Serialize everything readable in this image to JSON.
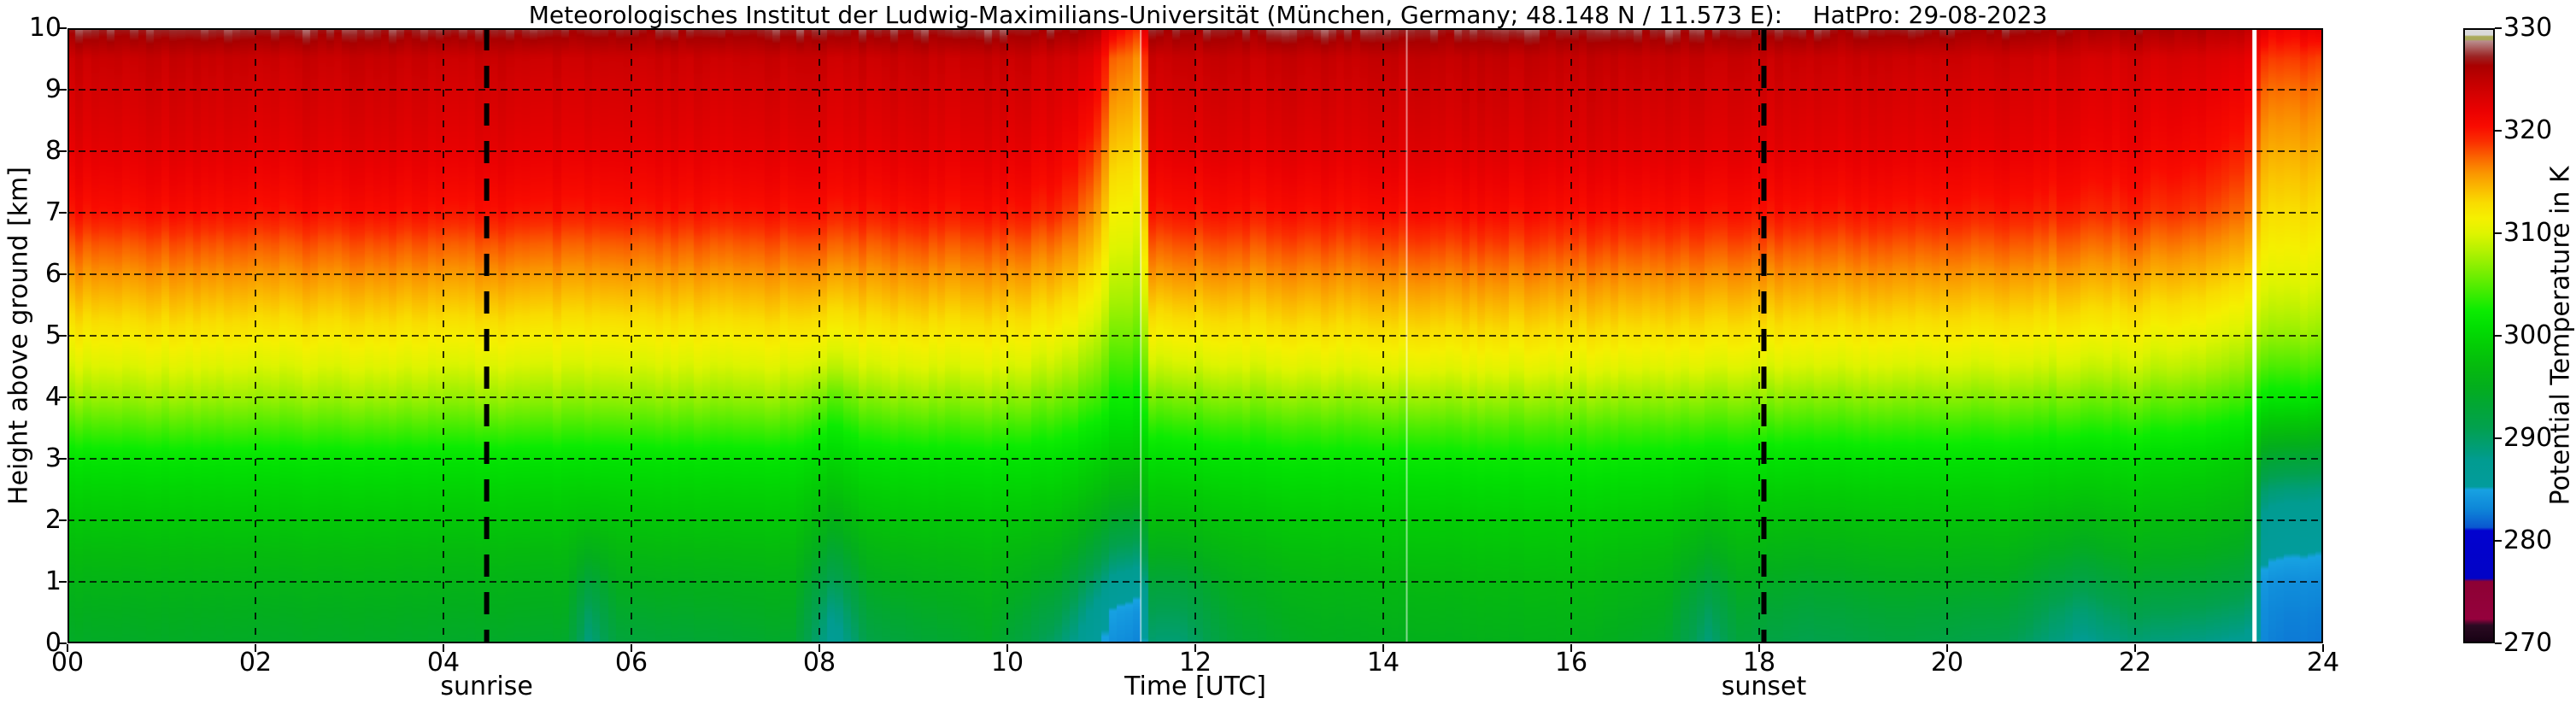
{
  "figure": {
    "title": "Meteorologisches Institut der Ludwig-Maximilians-Universität (München, Germany; 48.148 N / 11.573 E):    HatPro: 29-08-2023",
    "background_color": "#ffffff",
    "grid_color": "#000000",
    "frame_color": "#000000",
    "missing_data_line_color": "#ffffff"
  },
  "axes": {
    "x": {
      "label": "Time [UTC]",
      "range": [
        0,
        24
      ],
      "tick_values": [
        0,
        2,
        4,
        6,
        8,
        10,
        12,
        14,
        16,
        18,
        20,
        22,
        24
      ],
      "tick_labels": [
        "00",
        "02",
        "04",
        "06",
        "08",
        "10",
        "12",
        "14",
        "16",
        "18",
        "20",
        "22",
        "24"
      ]
    },
    "y": {
      "label": "Height above ground [km]",
      "range": [
        0,
        10
      ],
      "tick_values": [
        0,
        1,
        2,
        3,
        4,
        5,
        6,
        7,
        8,
        9,
        10
      ],
      "tick_labels": [
        "0",
        "1",
        "2",
        "3",
        "4",
        "5",
        "6",
        "7",
        "8",
        "9",
        "10"
      ]
    },
    "annotations": {
      "sunrise": {
        "label": "sunrise",
        "time_utc": 4.46
      },
      "sunset": {
        "label": "sunset",
        "time_utc": 18.05
      }
    }
  },
  "colorbar": {
    "label": "Potential Temperature in K",
    "range": [
      270,
      330
    ],
    "tick_values": [
      270,
      280,
      290,
      300,
      310,
      320,
      330
    ],
    "tick_labels": [
      "270",
      "280",
      "290",
      "300",
      "310",
      "320",
      "330"
    ]
  },
  "chart_data": {
    "type": "heatmap",
    "title": "Meteorologisches Institut der Ludwig-Maximilians-Universität (München, Germany; 48.148 N / 11.573 E):    HatPro: 29-08-2023",
    "xlabel": "Time [UTC]",
    "ylabel": "Height above ground [km]",
    "value_name": "Potential Temperature in K",
    "x_range_utc_hours": [
      0,
      24
    ],
    "y_range_km": [
      0,
      10
    ],
    "value_range_K": [
      270,
      330
    ],
    "grid": "dashed, 2 h vertical / 1 km horizontal",
    "legend_position": "right colorbar",
    "sunrise_utc": 4.46,
    "sunset_utc": 18.05,
    "missing_data_line_utc": 23.27,
    "seam_lines_utc": [
      11.42,
      14.25
    ],
    "colormap_stops": [
      [
        270.0,
        "#170214"
      ],
      [
        271.6,
        "#2b0a22"
      ],
      [
        271.9,
        "#5c0630"
      ],
      [
        272.2,
        "#95013d"
      ],
      [
        275.9,
        "#8d0134"
      ],
      [
        276.2,
        "#0203c6"
      ],
      [
        280.9,
        "#0202cf"
      ],
      [
        281.2,
        "#0a57d0"
      ],
      [
        283.0,
        "#0e86d8"
      ],
      [
        284.9,
        "#17a2e2"
      ],
      [
        285.2,
        "#029c9c"
      ],
      [
        287.9,
        "#019c90"
      ],
      [
        288.3,
        "#019c85"
      ],
      [
        291.0,
        "#02a14e"
      ],
      [
        293.0,
        "#02a636"
      ],
      [
        295.0,
        "#03ae1d"
      ],
      [
        297.0,
        "#05ba0e"
      ],
      [
        299.0,
        "#03cc05"
      ],
      [
        301.0,
        "#02e002"
      ],
      [
        302.5,
        "#0cec01"
      ],
      [
        304.0,
        "#39ec01"
      ],
      [
        306.0,
        "#73ee01"
      ],
      [
        308.0,
        "#abf101"
      ],
      [
        310.0,
        "#def400"
      ],
      [
        311.5,
        "#f5f000"
      ],
      [
        313.0,
        "#f9dc00"
      ],
      [
        314.5,
        "#fab900"
      ],
      [
        316.0,
        "#fa9400"
      ],
      [
        317.5,
        "#fa6400"
      ],
      [
        319.0,
        "#fa3000"
      ],
      [
        320.5,
        "#f90b00"
      ],
      [
        322.0,
        "#eb0101"
      ],
      [
        323.5,
        "#d70101"
      ],
      [
        325.0,
        "#c10000"
      ],
      [
        326.5,
        "#a90000"
      ],
      [
        327.4,
        "#9c2424"
      ],
      [
        328.4,
        "#ae6a6a"
      ],
      [
        328.9,
        "#b98c8c"
      ],
      [
        329.05,
        "#a9a959"
      ],
      [
        329.35,
        "#abab5c"
      ],
      [
        329.5,
        "#d9d9d9"
      ],
      [
        330.0,
        "#dcdcdc"
      ]
    ],
    "heights_km": [
      0,
      0.5,
      1,
      1.5,
      2,
      2.5,
      3,
      3.5,
      4,
      4.5,
      5,
      5.5,
      6,
      6.5,
      7,
      7.5,
      8,
      8.5,
      9,
      9.5,
      10
    ],
    "time_columns_utc": [
      0.0,
      3.0,
      5.3,
      5.55,
      5.85,
      7.7,
      8.15,
      8.55,
      9.8,
      10.55,
      10.9,
      11.15,
      11.38,
      11.44,
      11.5,
      11.85,
      12.4,
      13.2,
      14.5,
      16.0,
      17.0,
      17.45,
      17.8,
      18.5,
      19.5,
      20.6,
      21.4,
      22.0,
      22.7,
      23.2,
      23.38,
      23.6,
      24.0
    ],
    "theta_K": [
      [
        294.2,
        295.0,
        296.0,
        297.2,
        298.5,
        299.8,
        301.5,
        304.5,
        307.5,
        310.0,
        312.0,
        314.0,
        316.0,
        318.0,
        320.3,
        321.5,
        322.5,
        323.2,
        323.8,
        324.5,
        327.0
      ],
      [
        294.2,
        295.0,
        296.0,
        297.2,
        298.5,
        299.8,
        301.5,
        304.5,
        307.5,
        310.0,
        312.0,
        314.0,
        316.0,
        318.0,
        320.3,
        321.5,
        322.5,
        323.2,
        323.8,
        324.5,
        327.0
      ],
      [
        293.8,
        294.8,
        295.8,
        297.0,
        298.4,
        299.7,
        301.4,
        304.4,
        307.4,
        309.9,
        311.9,
        313.9,
        315.9,
        317.9,
        320.2,
        321.4,
        322.4,
        323.1,
        323.7,
        324.4,
        326.9
      ],
      [
        288.5,
        290.0,
        292.5,
        295.3,
        297.8,
        299.5,
        301.3,
        304.3,
        307.3,
        309.8,
        311.8,
        313.8,
        315.8,
        317.8,
        320.1,
        321.3,
        322.4,
        323.1,
        323.7,
        324.4,
        326.9
      ],
      [
        292.5,
        293.8,
        295.2,
        296.8,
        298.3,
        299.7,
        301.4,
        304.4,
        307.4,
        309.9,
        311.9,
        313.9,
        315.9,
        317.9,
        320.2,
        321.4,
        322.4,
        323.1,
        323.7,
        324.4,
        326.9
      ],
      [
        293.8,
        294.8,
        295.8,
        297.1,
        298.4,
        299.7,
        301.4,
        304.4,
        307.4,
        310.0,
        312.0,
        314.0,
        316.0,
        318.0,
        320.2,
        321.4,
        322.4,
        323.1,
        323.7,
        324.4,
        327.0
      ],
      [
        286.5,
        288.0,
        290.5,
        293.2,
        295.8,
        298.0,
        300.0,
        302.3,
        305.3,
        308.8,
        311.3,
        313.5,
        315.7,
        317.8,
        320.0,
        321.3,
        322.3,
        323.0,
        323.6,
        324.3,
        326.8
      ],
      [
        291.8,
        293.2,
        294.8,
        296.4,
        298.0,
        299.5,
        301.2,
        304.0,
        307.0,
        309.8,
        311.9,
        313.9,
        315.9,
        317.9,
        320.1,
        321.4,
        322.4,
        323.1,
        323.7,
        324.4,
        326.9
      ],
      [
        294.3,
        295.2,
        296.2,
        297.4,
        298.6,
        299.9,
        301.6,
        304.4,
        307.4,
        310.1,
        312.1,
        314.1,
        316.1,
        318.1,
        320.3,
        321.5,
        322.5,
        323.2,
        323.8,
        324.5,
        327.0
      ],
      [
        289.5,
        291.5,
        293.8,
        295.8,
        297.6,
        299.3,
        301.0,
        303.5,
        306.3,
        309.0,
        311.2,
        313.2,
        315.2,
        317.2,
        319.4,
        320.7,
        321.8,
        322.6,
        323.3,
        324.0,
        326.5
      ],
      [
        285.8,
        287.5,
        290.0,
        293.0,
        295.6,
        297.9,
        299.9,
        302.0,
        304.6,
        307.0,
        309.2,
        311.2,
        313.0,
        314.8,
        316.5,
        318.0,
        319.4,
        320.7,
        321.9,
        323.0,
        325.6
      ],
      [
        283.6,
        284.6,
        287.0,
        290.4,
        293.8,
        296.6,
        298.8,
        300.7,
        302.6,
        304.4,
        306.1,
        307.7,
        309.0,
        310.2,
        311.4,
        312.6,
        313.8,
        315.0,
        316.2,
        317.4,
        321.0
      ],
      [
        283.0,
        284.0,
        286.4,
        289.8,
        293.3,
        296.3,
        298.6,
        300.4,
        302.2,
        304.0,
        305.7,
        307.2,
        308.5,
        309.7,
        310.8,
        311.9,
        313.0,
        314.1,
        315.2,
        316.3,
        318.8
      ],
      [
        283.0,
        284.0,
        286.4,
        289.8,
        293.3,
        296.3,
        298.6,
        300.4,
        302.2,
        304.0,
        305.7,
        307.2,
        308.5,
        309.7,
        310.8,
        311.9,
        313.0,
        314.1,
        315.2,
        316.3,
        318.8
      ],
      [
        289.3,
        290.8,
        292.8,
        295.3,
        297.4,
        299.0,
        300.8,
        303.3,
        306.2,
        309.2,
        311.5,
        313.6,
        315.8,
        317.8,
        320.0,
        321.2,
        322.3,
        323.0,
        323.6,
        324.3,
        326.6
      ],
      [
        289.0,
        290.6,
        292.7,
        295.2,
        297.3,
        299.0,
        300.9,
        303.4,
        306.3,
        309.3,
        311.6,
        313.7,
        315.9,
        317.9,
        320.0,
        321.2,
        322.4,
        323.1,
        323.7,
        324.4,
        326.7
      ],
      [
        292.8,
        293.9,
        295.1,
        296.6,
        298.1,
        299.6,
        301.3,
        303.8,
        306.8,
        309.7,
        311.9,
        313.9,
        316.0,
        318.0,
        320.1,
        321.3,
        322.5,
        323.2,
        323.8,
        324.5,
        326.8
      ],
      [
        294.7,
        295.5,
        296.4,
        297.6,
        298.8,
        300.1,
        301.7,
        304.3,
        307.3,
        310.2,
        312.3,
        314.3,
        316.3,
        318.3,
        320.3,
        321.5,
        322.6,
        323.3,
        323.9,
        324.6,
        327.0
      ],
      [
        295.2,
        296.0,
        296.8,
        297.9,
        299.0,
        300.3,
        301.9,
        304.5,
        307.5,
        310.4,
        312.5,
        314.5,
        316.5,
        318.5,
        320.5,
        321.7,
        322.8,
        323.5,
        324.1,
        324.8,
        327.1
      ],
      [
        295.5,
        296.3,
        297.1,
        298.1,
        299.2,
        300.5,
        302.1,
        304.6,
        307.6,
        310.5,
        312.6,
        314.6,
        316.6,
        318.6,
        320.5,
        321.7,
        322.8,
        323.5,
        324.1,
        324.8,
        327.1
      ],
      [
        293.8,
        294.8,
        295.9,
        297.2,
        298.6,
        300.0,
        301.7,
        304.3,
        307.3,
        310.2,
        312.4,
        314.4,
        316.4,
        318.4,
        320.4,
        321.6,
        322.7,
        323.4,
        324.0,
        324.7,
        327.0
      ],
      [
        288.8,
        290.2,
        292.5,
        295.0,
        297.2,
        299.2,
        301.2,
        304.0,
        307.0,
        310.0,
        312.2,
        314.2,
        316.2,
        318.2,
        320.2,
        321.4,
        322.5,
        323.2,
        323.8,
        324.5,
        326.9
      ],
      [
        292.5,
        293.6,
        294.9,
        296.5,
        298.1,
        299.6,
        301.4,
        304.1,
        307.1,
        310.0,
        312.2,
        314.2,
        316.2,
        318.2,
        320.2,
        321.4,
        322.5,
        323.2,
        323.8,
        324.5,
        327.0
      ],
      [
        291.0,
        292.4,
        294.0,
        295.8,
        297.5,
        299.2,
        301.0,
        303.8,
        306.8,
        309.8,
        312.0,
        314.0,
        316.0,
        318.0,
        320.1,
        321.3,
        322.4,
        323.1,
        323.7,
        324.4,
        326.8
      ],
      [
        292.2,
        293.4,
        294.8,
        296.4,
        297.9,
        299.4,
        301.2,
        303.9,
        306.9,
        309.8,
        312.0,
        314.0,
        316.0,
        318.0,
        320.0,
        321.2,
        322.3,
        323.0,
        323.6,
        324.3,
        326.6
      ],
      [
        291.0,
        292.8,
        294.6,
        296.3,
        297.9,
        299.4,
        301.1,
        303.7,
        306.7,
        309.6,
        311.8,
        313.8,
        315.8,
        317.8,
        319.8,
        321.0,
        322.1,
        322.8,
        323.4,
        324.1,
        326.3
      ],
      [
        287.5,
        289.0,
        291.5,
        294.2,
        296.5,
        298.5,
        300.4,
        303.2,
        306.2,
        309.2,
        311.4,
        313.4,
        315.4,
        317.4,
        319.4,
        320.6,
        321.7,
        322.4,
        323.0,
        323.7,
        326.0
      ],
      [
        289.0,
        291.2,
        293.5,
        295.6,
        297.3,
        298.9,
        300.6,
        303.2,
        306.2,
        309.1,
        311.3,
        313.3,
        315.3,
        317.3,
        319.3,
        320.5,
        321.6,
        322.3,
        322.9,
        323.6,
        325.8
      ],
      [
        288.2,
        290.6,
        293.1,
        295.2,
        296.9,
        298.4,
        300.1,
        302.6,
        305.6,
        308.5,
        310.7,
        312.7,
        314.7,
        316.7,
        318.7,
        319.9,
        321.0,
        321.8,
        322.6,
        323.4,
        325.4
      ],
      [
        287.2,
        289.6,
        292.1,
        294.3,
        296.0,
        297.5,
        299.1,
        301.4,
        304.1,
        306.9,
        309.1,
        311.1,
        313.1,
        315.1,
        316.9,
        318.1,
        319.3,
        320.3,
        321.3,
        322.3,
        324.4
      ],
      [
        283.0,
        283.3,
        284.0,
        285.8,
        287.0,
        289.5,
        293.5,
        298.0,
        302.0,
        305.0,
        307.5,
        309.3,
        310.8,
        312.0,
        313.2,
        314.2,
        315.3,
        316.4,
        317.5,
        319.0,
        321.5
      ],
      [
        282.6,
        282.9,
        283.6,
        285.4,
        286.6,
        289.0,
        293.0,
        297.8,
        301.8,
        304.8,
        307.3,
        309.1,
        310.6,
        311.8,
        313.0,
        314.0,
        315.1,
        316.2,
        317.3,
        318.8,
        321.3
      ],
      [
        282.5,
        282.8,
        283.5,
        285.2,
        286.5,
        288.8,
        292.8,
        297.5,
        301.6,
        304.6,
        307.1,
        308.9,
        310.4,
        311.6,
        312.8,
        313.8,
        314.9,
        316.0,
        317.1,
        318.6,
        321.1
      ]
    ]
  }
}
